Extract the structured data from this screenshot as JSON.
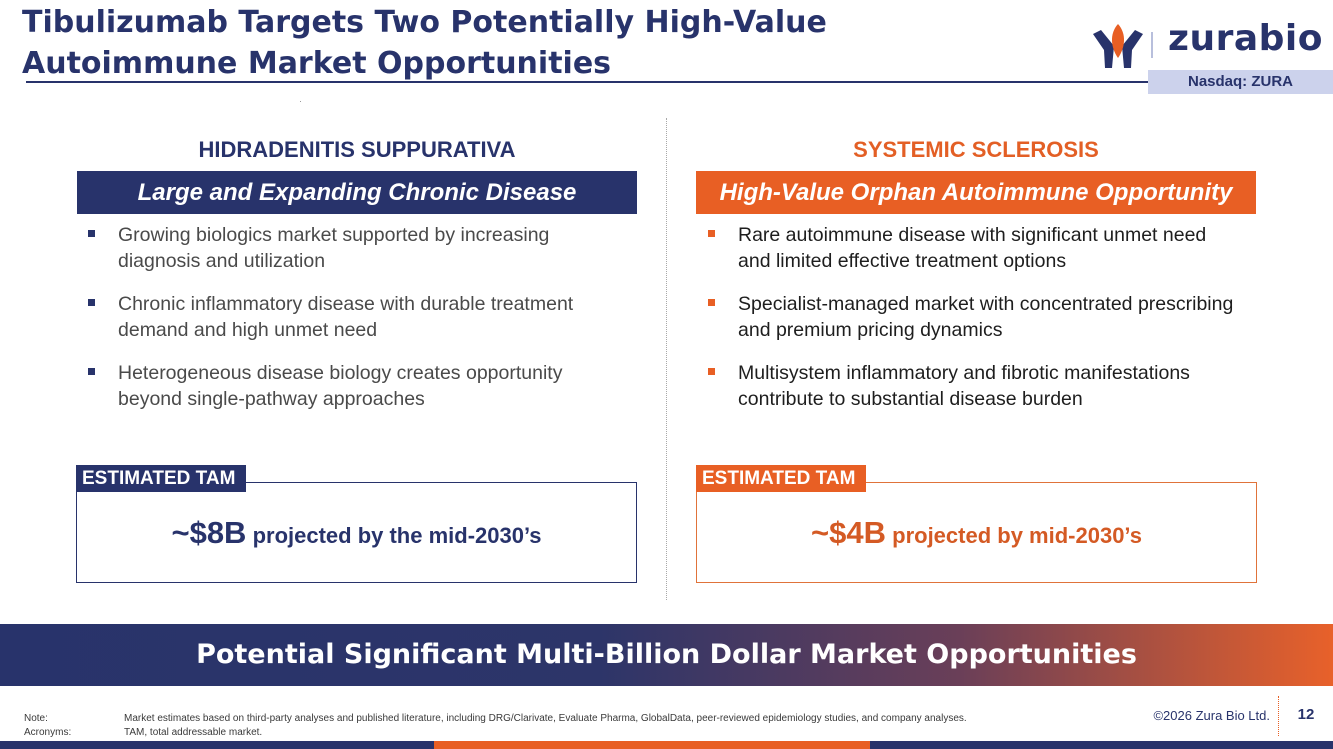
{
  "header": {
    "title_line1": "Tibulizumab Targets Two Potentially High-Value",
    "title_line2": "Autoimmune Market Opportunities",
    "logo_text": "zurabio",
    "ticker": "Nasdaq: ZURA"
  },
  "left_column": {
    "heading": "HIDRADENITIS SUPPURATIVA",
    "banner": "Large and Expanding Chronic Disease",
    "bullets": [
      "Growing biologics market supported by increasing diagnosis and utilization",
      "Chronic inflammatory disease with durable treatment demand and high unmet need",
      "Heterogeneous disease biology creates opportunity beyond single-pathway approaches"
    ],
    "tam_label": "ESTIMATED TAM",
    "tam_value": "~$8B",
    "tam_desc": " projected by the mid-2030’s"
  },
  "right_column": {
    "heading": "SYSTEMIC SCLEROSIS",
    "banner": "High-Value Orphan Autoimmune Opportunity",
    "bullets": [
      "Rare autoimmune disease with significant unmet need and limited effective treatment options",
      "Specialist-managed market with concentrated prescribing and premium pricing dynamics",
      "Multisystem inflammatory and fibrotic manifestations contribute to substantial disease burden"
    ],
    "tam_label": "ESTIMATED TAM",
    "tam_value": "~$4B",
    "tam_desc": " projected by mid-2030’s"
  },
  "bottom_banner": "Potential Significant Multi-Billion Dollar Market Opportunities",
  "footer": {
    "note_label": "Note:",
    "note_text": "Market estimates based on third-party analyses and published literature, including DRG/Clarivate, Evaluate Pharma, GlobalData, peer-reviewed epidemiology studies, and company analyses.",
    "acronyms_label": "Acronyms:",
    "acronyms_text": "TAM, total addressable market.",
    "copyright": "©2026 Zura Bio Ltd.",
    "page_number": "12"
  },
  "colors": {
    "navy": "#28336b",
    "orange": "#e85f24",
    "ticker_bg": "#ccd2ec"
  },
  "icons": {
    "logo": "zurabio-logo-icon",
    "bullet": "square-bullet-icon"
  }
}
